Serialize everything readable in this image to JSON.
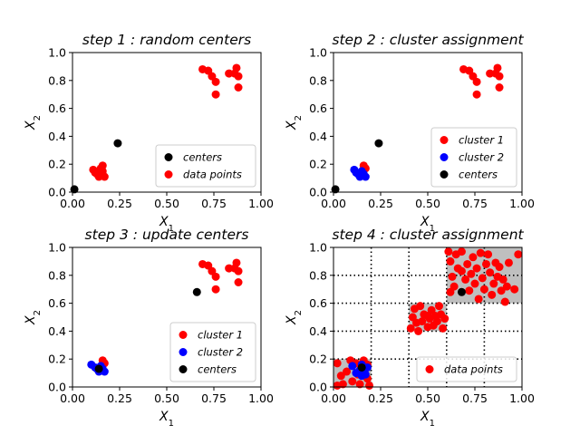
{
  "chart_data": [
    {
      "type": "scatter",
      "title": "step 1 : random centers",
      "xlabel": "X1",
      "ylabel": "X2",
      "xlim": [
        0,
        1
      ],
      "ylim": [
        0,
        1
      ],
      "xticks": [
        "0.00",
        "0.25",
        "0.50",
        "0.75",
        "1.00"
      ],
      "yticks": [
        "0.0",
        "0.2",
        "0.4",
        "0.6",
        "0.8",
        "1.0"
      ],
      "legend_position": "lower-right",
      "series": [
        {
          "name": "centers",
          "color": "#000000",
          "points": [
            [
              0.01,
              0.02
            ],
            [
              0.24,
              0.35
            ]
          ]
        },
        {
          "name": "data points",
          "color": "#ff0000",
          "points": [
            [
              0.11,
              0.16
            ],
            [
              0.12,
              0.14
            ],
            [
              0.13,
              0.13
            ],
            [
              0.14,
              0.11
            ],
            [
              0.15,
              0.12
            ],
            [
              0.15,
              0.17
            ],
            [
              0.16,
              0.19
            ],
            [
              0.16,
              0.15
            ],
            [
              0.17,
              0.11
            ],
            [
              0.16,
              0.13
            ],
            [
              0.69,
              0.88
            ],
            [
              0.72,
              0.87
            ],
            [
              0.74,
              0.83
            ],
            [
              0.76,
              0.79
            ],
            [
              0.76,
              0.7
            ],
            [
              0.83,
              0.85
            ],
            [
              0.86,
              0.85
            ],
            [
              0.87,
              0.89
            ],
            [
              0.88,
              0.83
            ],
            [
              0.88,
              0.75
            ]
          ]
        }
      ]
    },
    {
      "type": "scatter",
      "title": "step 2 : cluster assignment",
      "xlabel": "X1",
      "ylabel": "X2",
      "xlim": [
        0,
        1
      ],
      "ylim": [
        0,
        1
      ],
      "xticks": [
        "0.00",
        "0.25",
        "0.50",
        "0.75",
        "1.00"
      ],
      "yticks": [
        "0.0",
        "0.2",
        "0.4",
        "0.6",
        "0.8",
        "1.0"
      ],
      "legend_position": "lower-right",
      "series": [
        {
          "name": "cluster 1",
          "color": "#ff0000",
          "points": [
            [
              0.16,
              0.19
            ],
            [
              0.17,
              0.17
            ],
            [
              0.69,
              0.88
            ],
            [
              0.72,
              0.87
            ],
            [
              0.74,
              0.83
            ],
            [
              0.76,
              0.79
            ],
            [
              0.76,
              0.7
            ],
            [
              0.83,
              0.85
            ],
            [
              0.86,
              0.85
            ],
            [
              0.87,
              0.89
            ],
            [
              0.88,
              0.83
            ],
            [
              0.88,
              0.75
            ]
          ]
        },
        {
          "name": "cluster 2",
          "color": "#0000ff",
          "points": [
            [
              0.11,
              0.16
            ],
            [
              0.12,
              0.14
            ],
            [
              0.13,
              0.13
            ],
            [
              0.14,
              0.11
            ],
            [
              0.15,
              0.12
            ],
            [
              0.15,
              0.15
            ],
            [
              0.17,
              0.11
            ],
            [
              0.16,
              0.13
            ]
          ]
        },
        {
          "name": "centers",
          "color": "#000000",
          "points": [
            [
              0.01,
              0.02
            ],
            [
              0.24,
              0.35
            ]
          ]
        }
      ]
    },
    {
      "type": "scatter",
      "title": "step 3 : update centers",
      "xlabel": "X1",
      "ylabel": "X2",
      "xlim": [
        0,
        1
      ],
      "ylim": [
        0,
        1
      ],
      "xticks": [
        "0.00",
        "0.25",
        "0.50",
        "0.75",
        "1.00"
      ],
      "yticks": [
        "0.0",
        "0.2",
        "0.4",
        "0.6",
        "0.8",
        "1.0"
      ],
      "legend_position": "lower-right",
      "series": [
        {
          "name": "cluster 1",
          "color": "#ff0000",
          "points": [
            [
              0.16,
              0.19
            ],
            [
              0.17,
              0.17
            ],
            [
              0.69,
              0.88
            ],
            [
              0.72,
              0.87
            ],
            [
              0.74,
              0.83
            ],
            [
              0.76,
              0.79
            ],
            [
              0.76,
              0.7
            ],
            [
              0.83,
              0.85
            ],
            [
              0.86,
              0.85
            ],
            [
              0.87,
              0.89
            ],
            [
              0.88,
              0.83
            ],
            [
              0.88,
              0.75
            ]
          ]
        },
        {
          "name": "cluster 2",
          "color": "#0000ff",
          "points": [
            [
              0.1,
              0.16
            ],
            [
              0.12,
              0.14
            ],
            [
              0.13,
              0.13
            ],
            [
              0.14,
              0.11
            ],
            [
              0.15,
              0.12
            ],
            [
              0.15,
              0.15
            ],
            [
              0.17,
              0.11
            ],
            [
              0.16,
              0.13
            ]
          ]
        },
        {
          "name": "centers",
          "color": "#000000",
          "points": [
            [
              0.14,
              0.13
            ],
            [
              0.66,
              0.68
            ]
          ]
        }
      ]
    },
    {
      "type": "scatter",
      "title": "step 4 : cluster assignment",
      "xlabel": "X1",
      "ylabel": "X2",
      "xlim": [
        0,
        1
      ],
      "ylim": [
        0,
        1
      ],
      "xticks": [
        "0.00",
        "0.25",
        "0.50",
        "0.75",
        "1.00"
      ],
      "yticks": [
        "0.0",
        "0.2",
        "0.4",
        "0.6",
        "0.8",
        "1.0"
      ],
      "grid": "dotted",
      "gridlines": [
        0.2,
        0.4,
        0.6,
        0.8
      ],
      "legend_position": "lower-right",
      "shaded_cells": [
        [
          0.0,
          0.0
        ],
        [
          0.4,
          0.4
        ],
        [
          0.6,
          0.6
        ],
        [
          0.6,
          0.8
        ],
        [
          0.8,
          0.6
        ],
        [
          0.8,
          0.8
        ]
      ],
      "shade_color": "#bfbfbf",
      "series": [
        {
          "name": "data points",
          "color": "#ff0000",
          "points": [
            [
              0.02,
              0.17
            ],
            [
              0.04,
              0.08
            ],
            [
              0.05,
              0.02
            ],
            [
              0.07,
              0.11
            ],
            [
              0.09,
              0.19
            ],
            [
              0.1,
              0.04
            ],
            [
              0.12,
              0.17
            ],
            [
              0.14,
              0.02
            ],
            [
              0.16,
              0.19
            ],
            [
              0.18,
              0.16
            ],
            [
              0.18,
              0.06
            ],
            [
              0.19,
              0.01
            ],
            [
              0.02,
              0.01
            ],
            [
              0.13,
              0.09
            ],
            [
              0.41,
              0.42
            ],
            [
              0.42,
              0.5
            ],
            [
              0.43,
              0.56
            ],
            [
              0.45,
              0.4
            ],
            [
              0.46,
              0.58
            ],
            [
              0.47,
              0.47
            ],
            [
              0.48,
              0.52
            ],
            [
              0.5,
              0.43
            ],
            [
              0.51,
              0.49
            ],
            [
              0.52,
              0.55
            ],
            [
              0.53,
              0.44
            ],
            [
              0.54,
              0.51
            ],
            [
              0.55,
              0.47
            ],
            [
              0.56,
              0.58
            ],
            [
              0.57,
              0.52
            ],
            [
              0.58,
              0.42
            ],
            [
              0.59,
              0.49
            ],
            [
              0.44,
              0.46
            ],
            [
              0.5,
              0.51
            ],
            [
              0.61,
              0.97
            ],
            [
              0.62,
              0.9
            ],
            [
              0.63,
              0.79
            ],
            [
              0.64,
              0.72
            ],
            [
              0.65,
              0.95
            ],
            [
              0.66,
              0.85
            ],
            [
              0.68,
              0.97
            ],
            [
              0.7,
              0.77
            ],
            [
              0.71,
              0.88
            ],
            [
              0.72,
              0.69
            ],
            [
              0.73,
              0.81
            ],
            [
              0.74,
              0.93
            ],
            [
              0.75,
              0.74
            ],
            [
              0.76,
              0.85
            ],
            [
              0.77,
              0.63
            ],
            [
              0.78,
              0.96
            ],
            [
              0.79,
              0.78
            ],
            [
              0.8,
              0.7
            ],
            [
              0.81,
              0.88
            ],
            [
              0.82,
              0.95
            ],
            [
              0.83,
              0.82
            ],
            [
              0.84,
              0.66
            ],
            [
              0.85,
              0.74
            ],
            [
              0.86,
              0.89
            ],
            [
              0.87,
              0.79
            ],
            [
              0.88,
              0.86
            ],
            [
              0.89,
              0.69
            ],
            [
              0.9,
              0.77
            ],
            [
              0.91,
              0.61
            ],
            [
              0.92,
              0.72
            ],
            [
              0.93,
              0.89
            ],
            [
              0.96,
              0.7
            ],
            [
              0.98,
              0.95
            ],
            [
              0.62,
              0.68
            ],
            [
              0.68,
              0.83
            ]
          ]
        },
        {
          "name": "",
          "color": "#0000ff",
          "points": [
            [
              0.1,
              0.15
            ],
            [
              0.12,
              0.1
            ],
            [
              0.14,
              0.12
            ],
            [
              0.15,
              0.16
            ],
            [
              0.16,
              0.12
            ],
            [
              0.17,
              0.09
            ],
            [
              0.18,
              0.14
            ],
            [
              0.15,
              0.08
            ]
          ]
        },
        {
          "name": "",
          "color": "#000000",
          "points": [
            [
              0.15,
              0.14
            ],
            [
              0.68,
              0.68
            ]
          ]
        }
      ]
    }
  ]
}
